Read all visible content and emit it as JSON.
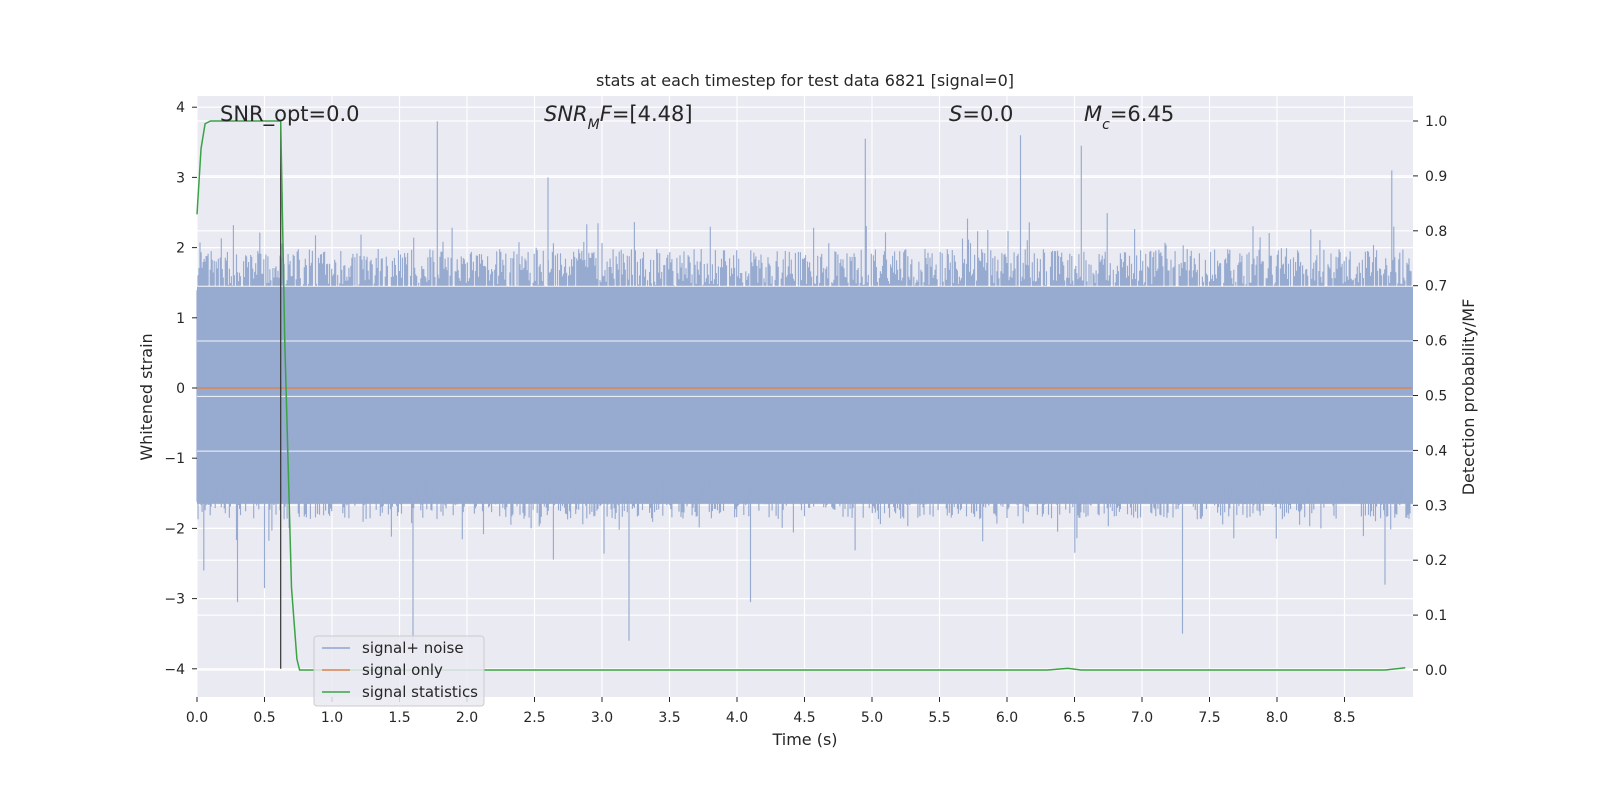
{
  "chart_data": {
    "type": "line",
    "title": "stats at each timestep for test data 6821 [signal=0]",
    "xlabel": "Time (s)",
    "ylabel_left": "Whitened strain",
    "ylabel_right": "Detection probability/MF",
    "xlim": [
      0.0,
      9.0
    ],
    "ylim_left": [
      -4.3,
      4.2
    ],
    "ylim_right": [
      -0.05,
      1.05
    ],
    "x_ticks": [
      "0.0",
      "0.5",
      "1.0",
      "1.5",
      "2.0",
      "2.5",
      "3.0",
      "3.5",
      "4.0",
      "4.5",
      "5.0",
      "5.5",
      "6.0",
      "6.5",
      "7.0",
      "7.5",
      "8.0",
      "8.5"
    ],
    "y_ticks_left": [
      "−4",
      "−3",
      "−2",
      "−1",
      "0",
      "1",
      "2",
      "3",
      "4"
    ],
    "y_ticks_right": [
      "0.0",
      "0.1",
      "0.2",
      "0.3",
      "0.4",
      "0.5",
      "0.6",
      "0.7",
      "0.8",
      "0.9",
      "1.0"
    ],
    "grid": true,
    "annotations": [
      {
        "text": "SNR_opt=0.0",
        "x": 0.2
      },
      {
        "text": "SNR_MF=[4.48]",
        "x": 2.6
      },
      {
        "text": "S=0.0",
        "x": 5.6
      },
      {
        "text": "M_c=6.45",
        "x": 6.6
      }
    ],
    "vline_x": 0.62,
    "legend": {
      "placement": "lower-left",
      "entries": [
        {
          "name": "signal+ noise",
          "color": "#8fa5cc"
        },
        {
          "name": "signal only",
          "color": "#dd8452"
        },
        {
          "name": "signal statistics",
          "color": "#3ba345"
        }
      ]
    },
    "series": [
      {
        "name": "signal+ noise",
        "axis": "left",
        "description_type": "noise",
        "duration_s": 9.0,
        "envelope_upper": 1.8,
        "envelope_lower": -1.7,
        "peaks": [
          {
            "x": 0.05,
            "y": -2.6
          },
          {
            "x": 0.3,
            "y": -3.05
          },
          {
            "x": 0.5,
            "y": -2.85
          },
          {
            "x": 1.6,
            "y": -3.6
          },
          {
            "x": 1.78,
            "y": 3.8
          },
          {
            "x": 2.6,
            "y": 3.0
          },
          {
            "x": 3.2,
            "y": -3.6
          },
          {
            "x": 4.1,
            "y": -3.05
          },
          {
            "x": 4.95,
            "y": 3.55
          },
          {
            "x": 6.1,
            "y": 3.6
          },
          {
            "x": 6.55,
            "y": 3.45
          },
          {
            "x": 7.3,
            "y": -3.5
          },
          {
            "x": 8.85,
            "y": 3.1
          },
          {
            "x": 8.8,
            "y": -2.8
          }
        ]
      },
      {
        "name": "signal only",
        "axis": "left",
        "x": [
          0.0,
          9.0
        ],
        "y": [
          0.0,
          0.0
        ]
      },
      {
        "name": "signal statistics",
        "axis": "right",
        "x": [
          0.0,
          0.03,
          0.06,
          0.1,
          0.15,
          0.3,
          0.5,
          0.6,
          0.62,
          0.65,
          0.7,
          0.74,
          0.76,
          0.8,
          1.5,
          3.0,
          5.0,
          6.3,
          6.45,
          6.55,
          7.0,
          8.0,
          8.8,
          8.95
        ],
        "y": [
          0.83,
          0.95,
          0.995,
          1.0,
          1.0,
          1.0,
          1.0,
          1.0,
          1.0,
          0.6,
          0.15,
          0.02,
          0.0,
          0.0,
          0.0,
          0.0,
          0.0,
          0.0,
          0.003,
          0.0,
          0.0,
          0.0,
          0.0,
          0.004
        ]
      }
    ]
  }
}
